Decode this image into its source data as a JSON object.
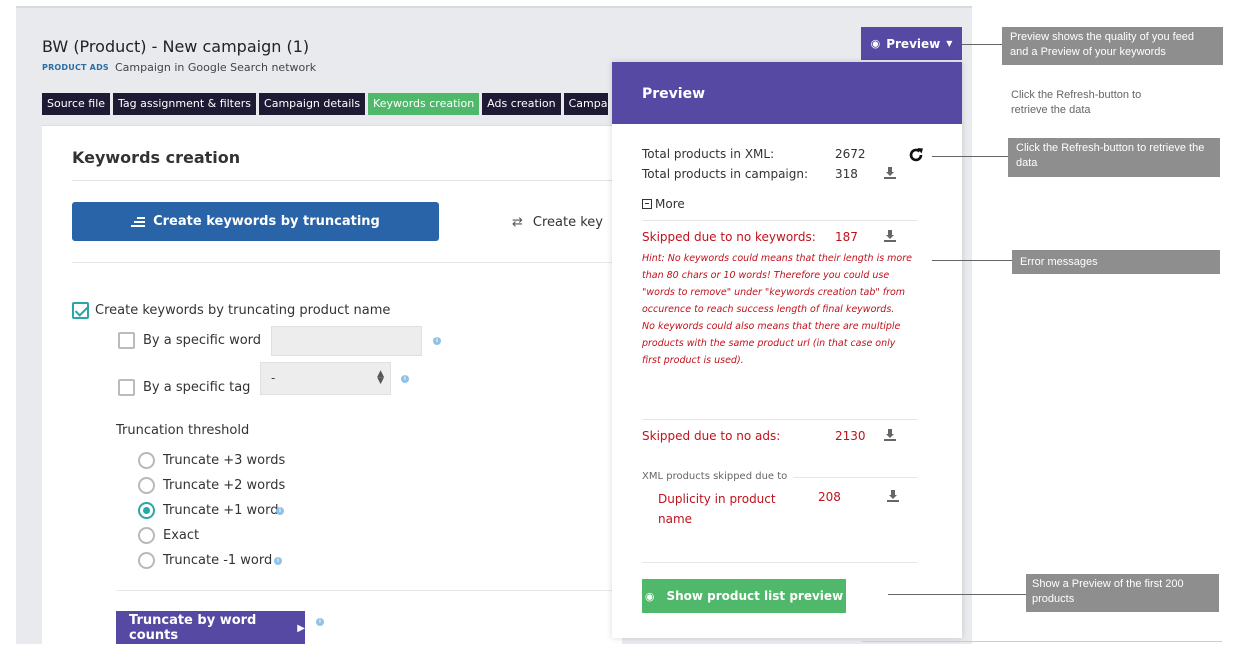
{
  "header": {
    "title": "BW (Product) - New campaign (1)",
    "badge": "PRODUCT ADS",
    "subtitle": "Campaign in Google Search network",
    "preview_button": "Preview"
  },
  "tabs": [
    {
      "label": "Source file"
    },
    {
      "label": "Tag assignment & filters"
    },
    {
      "label": "Campaign details"
    },
    {
      "label": "Keywords creation"
    },
    {
      "label": "Ads creation"
    },
    {
      "label": "Campaign s"
    }
  ],
  "keywords": {
    "heading": "Keywords creation",
    "btn_truncating": "Create keywords by truncating",
    "btn_other": "Create key",
    "chk_main": "Create keywords by truncating product name",
    "opt_word": "By a specific word",
    "opt_tag": "By a specific tag",
    "tag_select_value": "-",
    "threshold_label": "Truncation threshold",
    "radios": [
      {
        "label": "Truncate +3 words"
      },
      {
        "label": "Truncate +2 words"
      },
      {
        "label": "Truncate +1 word"
      },
      {
        "label": "Exact"
      },
      {
        "label": "Truncate -1 word"
      }
    ],
    "btn_word_counts": "Truncate by word counts"
  },
  "preview": {
    "title": "Preview",
    "total_xml_label": "Total products in XML:",
    "total_xml_value": "2672",
    "total_campaign_label": "Total products in campaign:",
    "total_campaign_value": "318",
    "more_label": "More",
    "skipped_kw_label": "Skipped due to no keywords:",
    "skipped_kw_value": "187",
    "hint": "Hint: No keywords could means that their length is more than 80 chars or 10 words! Therefore you could use \"words to remove\" under \"keywords creation tab\" from occurence to reach success length of final keywords.",
    "hint2": "No keywords could also means that there are multiple products with the same product url (in that case only first product is used).",
    "skipped_ads_label": "Skipped due to no ads:",
    "skipped_ads_value": "2130",
    "xml_skipped_label": "XML products skipped due to",
    "duplicity_label": "Duplicity in product name",
    "duplicity_value": "208",
    "show_list_button": "Show product list preview"
  },
  "annotations": {
    "preview_note": "Preview shows the quality of you feed and a Preview of your keywords",
    "refresh_plain": "Click the Refresh-button to retrieve the data",
    "refresh_note": "Click the Refresh-button to retrieve the data",
    "errors_note": "Error messages",
    "products_note": "Show a Preview of the first  200 products"
  }
}
